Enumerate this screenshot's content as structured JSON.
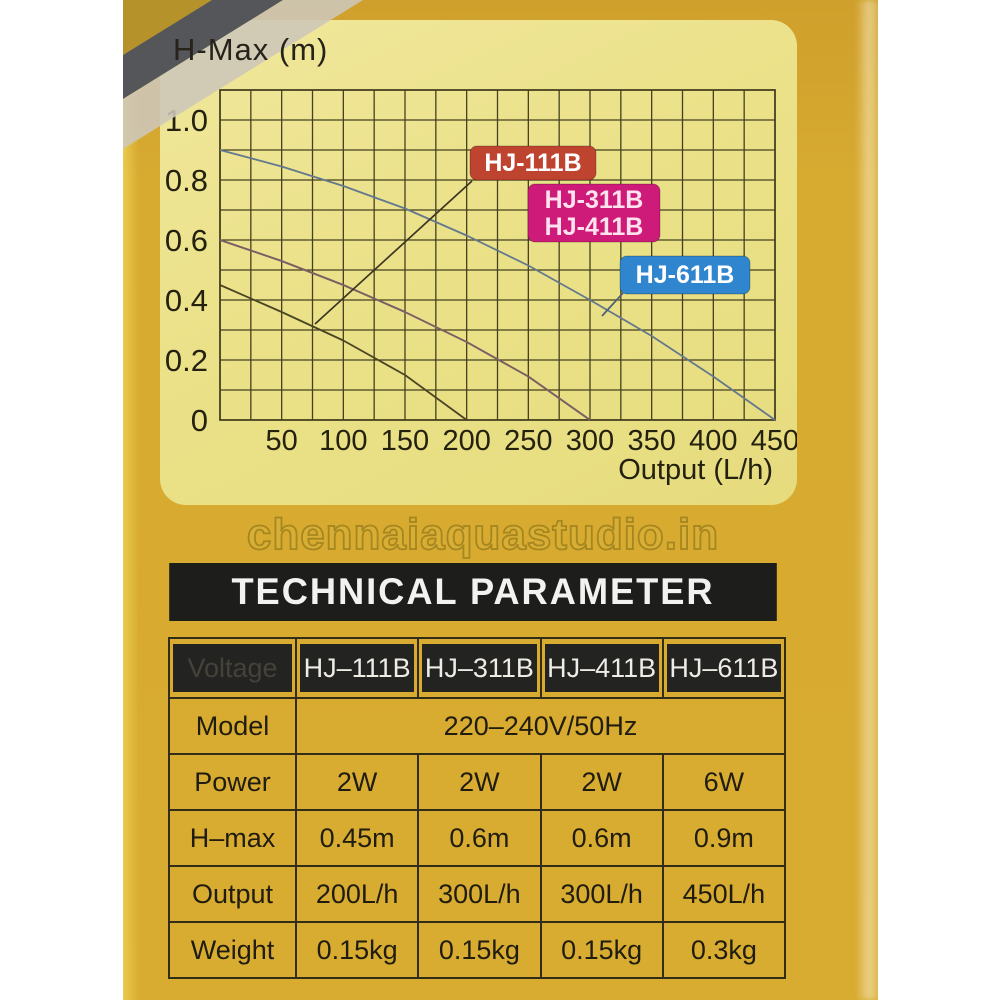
{
  "watermark": {
    "text": "chennaiaquastudio.in"
  },
  "section": {
    "title": "TECHNICAL PARAMETER"
  },
  "chart": {
    "title": "H-Max (m)",
    "badges": [
      {
        "lines": [
          "HJ-111B"
        ],
        "bg": "#bf4430",
        "text_color": "#ffffff"
      },
      {
        "lines": [
          "HJ-311B",
          "HJ-411B"
        ],
        "bg": "#ce1a78",
        "text_color": "#ffe2ee"
      },
      {
        "lines": [
          "HJ-611B"
        ],
        "bg": "#2f86ce",
        "text_color": "#ffffff"
      }
    ]
  },
  "chart_data": {
    "type": "line",
    "title": "H-Max (m)",
    "xlabel": "Output (L/h)",
    "ylabel": "H-Max (m)",
    "xlim": [
      0,
      450
    ],
    "ylim": [
      0,
      1.1
    ],
    "xticks": [
      50,
      100,
      150,
      200,
      250,
      300,
      350,
      400,
      450
    ],
    "yticks": [
      1.0,
      0.8,
      0.6,
      0.4,
      0.2,
      0
    ],
    "grid": {
      "on": true,
      "minor_x_step": 25,
      "minor_y_step": 0.1
    },
    "legend_position": "inline-badges",
    "series": [
      {
        "name": "HJ-611B",
        "color": "#64788e",
        "points": [
          [
            0,
            0.9
          ],
          [
            50,
            0.845
          ],
          [
            100,
            0.78
          ],
          [
            150,
            0.705
          ],
          [
            200,
            0.615
          ],
          [
            250,
            0.515
          ],
          [
            300,
            0.4
          ],
          [
            350,
            0.28
          ],
          [
            400,
            0.145
          ],
          [
            450,
            0
          ]
        ]
      },
      {
        "name": "HJ-311B",
        "color": "#7b5f63",
        "points": [
          [
            0,
            0.6
          ],
          [
            50,
            0.53
          ],
          [
            100,
            0.45
          ],
          [
            150,
            0.36
          ],
          [
            200,
            0.26
          ],
          [
            250,
            0.145
          ],
          [
            300,
            0
          ]
        ]
      },
      {
        "name": "HJ-411B",
        "color": "#7b5f63",
        "points": [
          [
            0,
            0.6
          ],
          [
            50,
            0.53
          ],
          [
            100,
            0.45
          ],
          [
            150,
            0.36
          ],
          [
            200,
            0.26
          ],
          [
            250,
            0.145
          ],
          [
            300,
            0
          ]
        ]
      },
      {
        "name": "HJ-111B",
        "color": "#4a4423",
        "points": [
          [
            0,
            0.45
          ],
          [
            50,
            0.36
          ],
          [
            100,
            0.265
          ],
          [
            150,
            0.15
          ],
          [
            200,
            0
          ]
        ]
      }
    ]
  },
  "table": {
    "header": [
      "Voltage",
      "HJ–111B",
      "HJ–311B",
      "HJ–411B",
      "HJ–611B"
    ],
    "rows": [
      {
        "label": "Model",
        "span_value": "220–240V/50Hz"
      },
      {
        "label": "Power",
        "values": [
          "2W",
          "2W",
          "2W",
          "6W"
        ]
      },
      {
        "label": "H–max",
        "values": [
          "0.45m",
          "0.6m",
          "0.6m",
          "0.9m"
        ]
      },
      {
        "label": "Output",
        "values": [
          "200L/h",
          "300L/h",
          "300L/h",
          "450L/h"
        ]
      },
      {
        "label": "Weight",
        "values": [
          "0.15kg",
          "0.15kg",
          "0.15kg",
          "0.3kg"
        ]
      }
    ]
  },
  "colors": {
    "box_gold": "#d8ab31",
    "panel_yellow": "#ebe189",
    "grid_line": "#45401f",
    "bar_black": "#1d1d1b",
    "header_cell": "#232321",
    "stripe_dark": "#55565a",
    "stripe_light": "#cdc7ba",
    "stripe_mustard": "#b6922a"
  }
}
